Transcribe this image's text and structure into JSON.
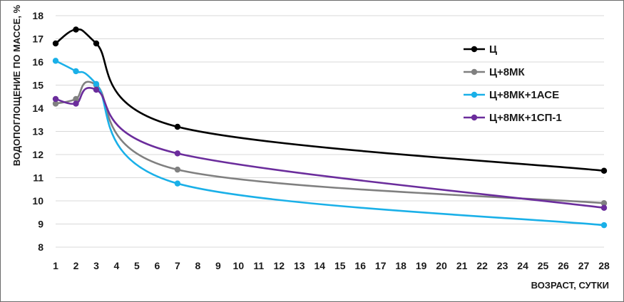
{
  "chart_data": {
    "type": "line",
    "title": "",
    "xlabel": "ВОЗРАСТ, СУТКИ",
    "ylabel": "ВОДОПОГЛОЩЕНИЕ ПО МАССЕ, %",
    "xlim": [
      1,
      28
    ],
    "ylim": [
      8,
      18
    ],
    "xticks": [
      1,
      2,
      3,
      4,
      5,
      6,
      7,
      8,
      9,
      10,
      11,
      12,
      13,
      14,
      15,
      16,
      17,
      18,
      19,
      20,
      21,
      22,
      23,
      24,
      25,
      26,
      27,
      28
    ],
    "yticks": [
      8,
      9,
      10,
      11,
      12,
      13,
      14,
      15,
      16,
      17,
      18
    ],
    "grid": "horizontal",
    "legend_position": "right",
    "series": [
      {
        "name": "Ц",
        "color": "#000000",
        "x": [
          1,
          2,
          3,
          7,
          28
        ],
        "y": [
          16.8,
          17.4,
          16.8,
          13.2,
          11.3
        ]
      },
      {
        "name": "Ц+8МК",
        "color": "#808080",
        "x": [
          1,
          2,
          3,
          7,
          28
        ],
        "y": [
          14.2,
          14.4,
          15.0,
          11.35,
          9.9
        ]
      },
      {
        "name": "Ц+8МК+1АСЕ",
        "color": "#1ab0e8",
        "x": [
          1,
          2,
          3,
          7,
          28
        ],
        "y": [
          16.05,
          15.6,
          15.05,
          10.75,
          8.95
        ]
      },
      {
        "name": "Ц+8МК+1СП-1",
        "color": "#6b2d9c",
        "x": [
          1,
          2,
          3,
          7,
          28
        ],
        "y": [
          14.4,
          14.2,
          14.8,
          12.05,
          9.7
        ]
      }
    ]
  }
}
